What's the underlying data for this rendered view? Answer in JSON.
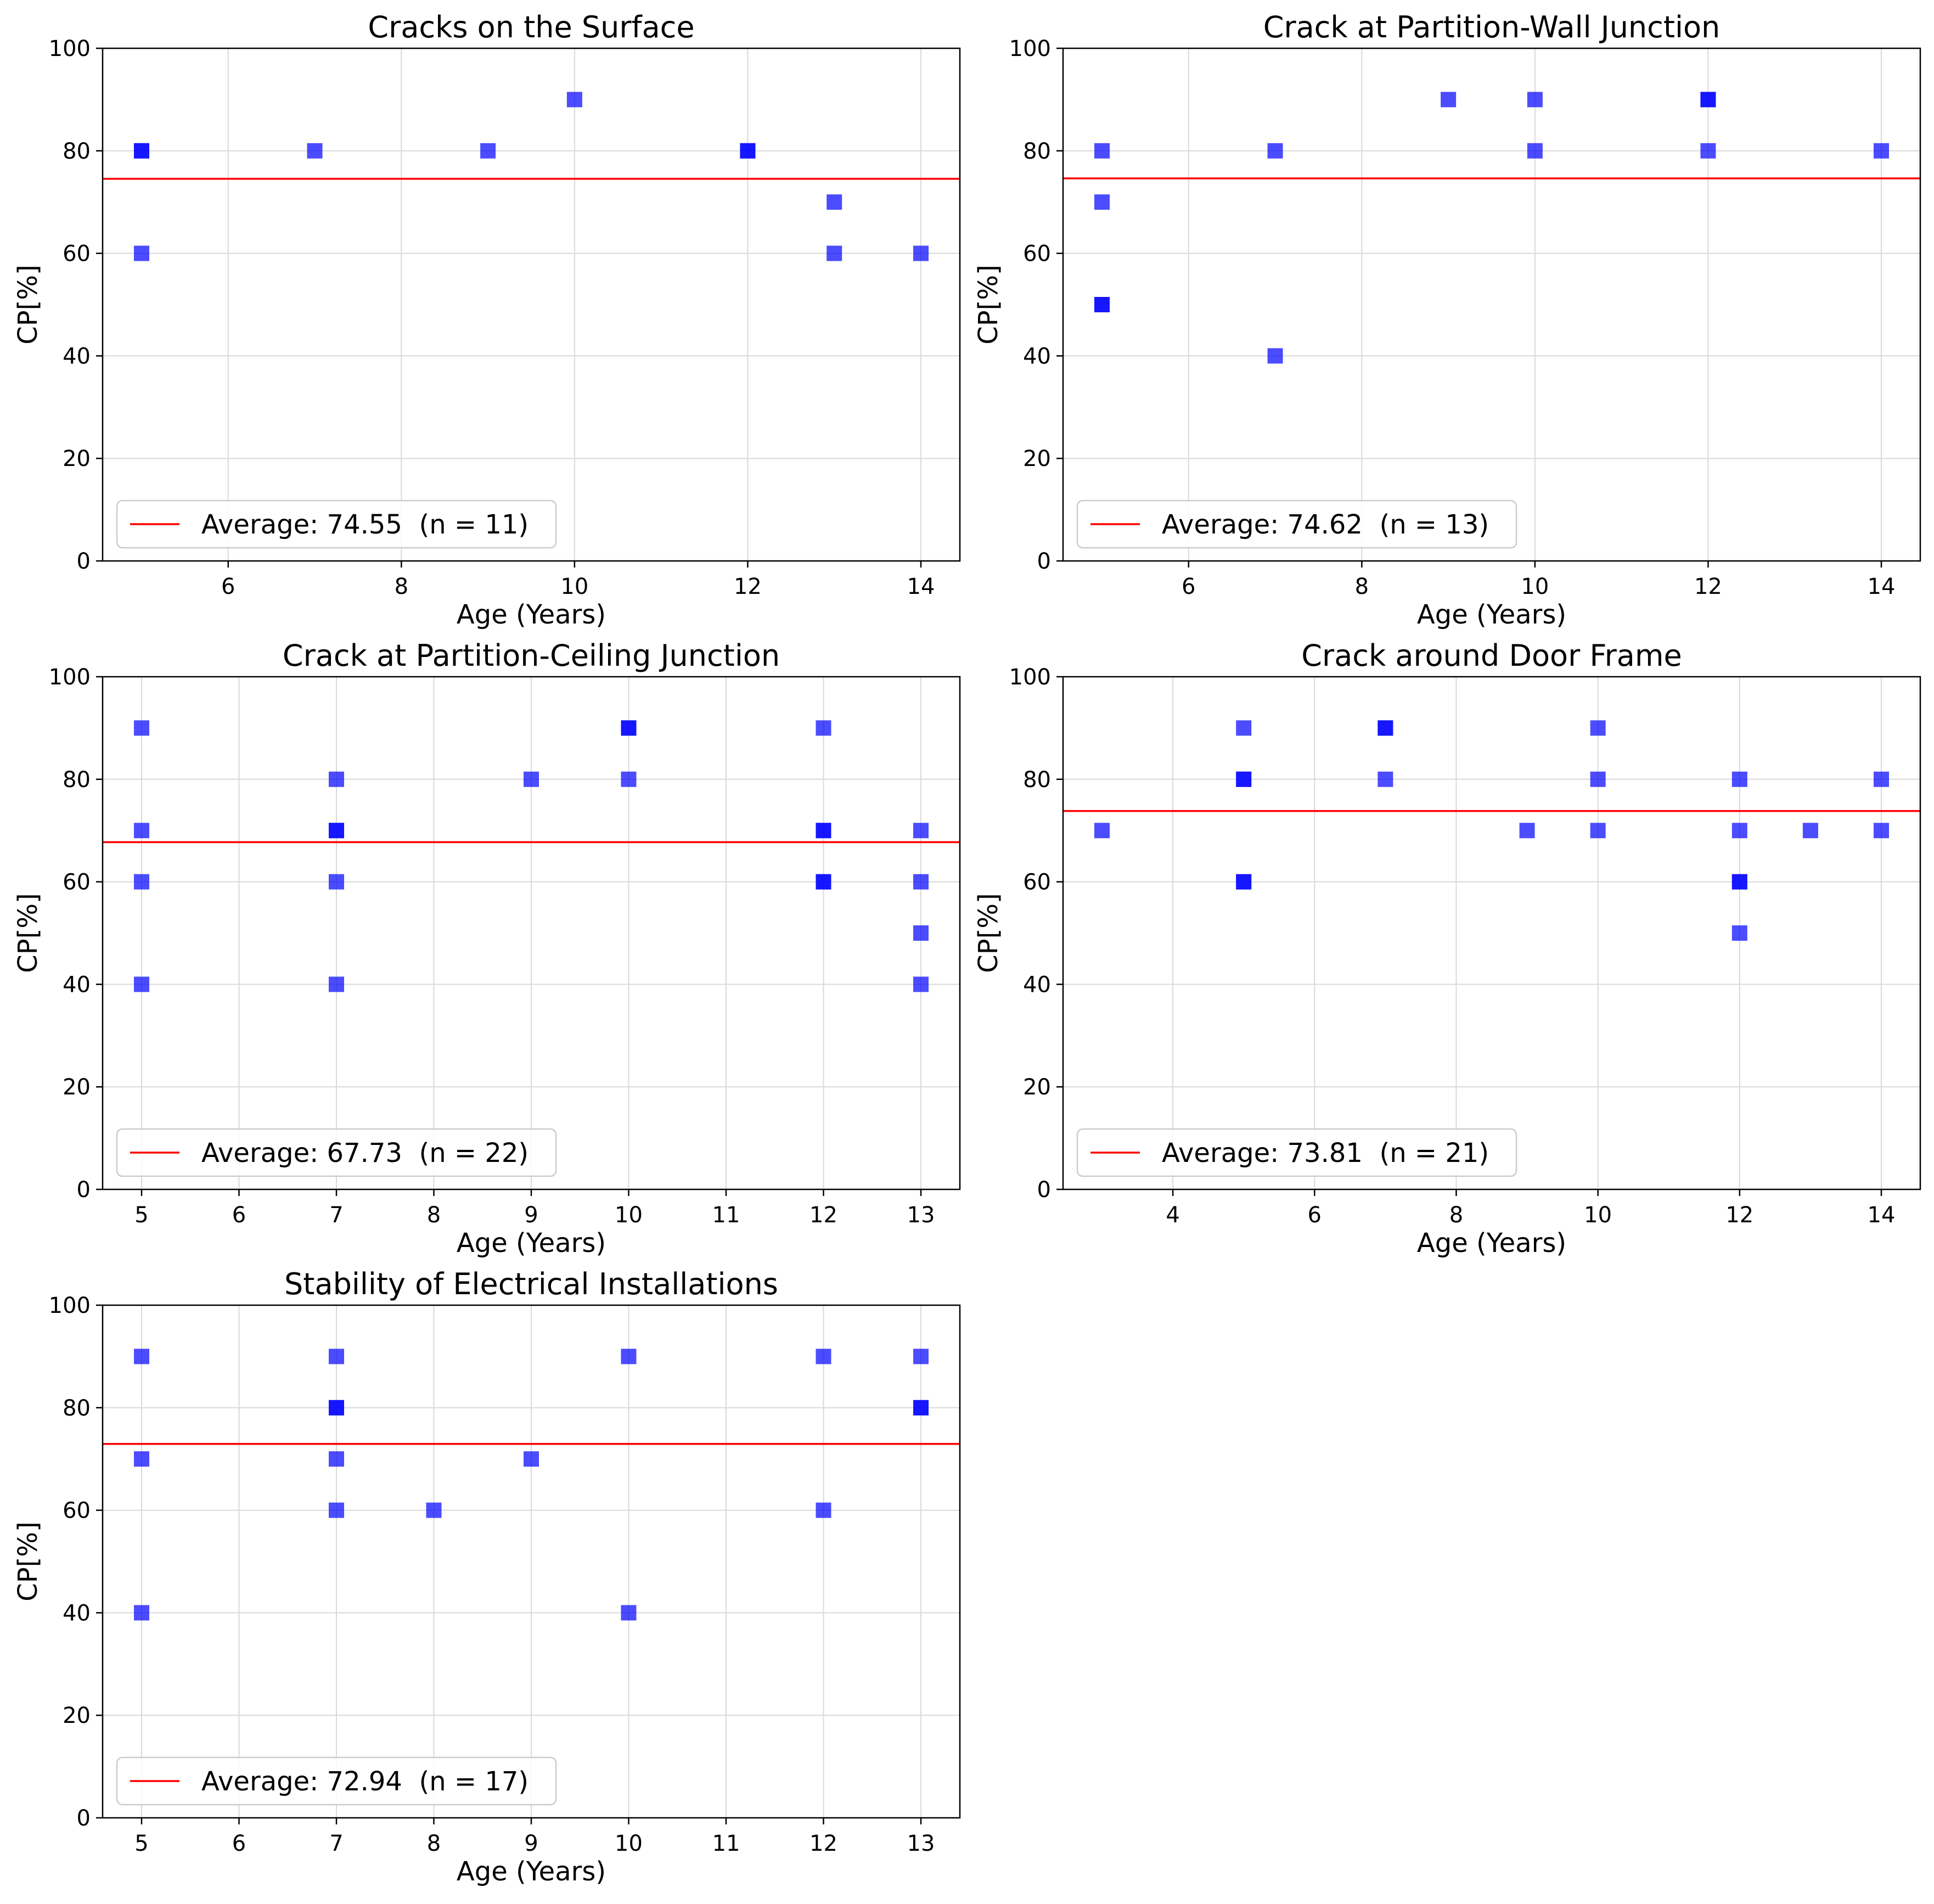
{
  "colors": {
    "marker": "#0000ff",
    "average_line": "#ff0000",
    "grid": "#d9d9d9",
    "frame": "#000000",
    "legend_border": "#cccccc"
  },
  "chart_data": [
    {
      "type": "scatter",
      "title": "Cracks on the Surface",
      "xlabel": "Age (Years)",
      "ylabel": "CP[%]",
      "xlim": [
        4.55,
        14.45
      ],
      "ylim": [
        0,
        100
      ],
      "xticks": [
        6,
        8,
        10,
        12,
        14
      ],
      "yticks": [
        0,
        20,
        40,
        60,
        80,
        100
      ],
      "average": 74.55,
      "n": 11,
      "legend_label": "Average: 74.55  (n = 11)",
      "legend_position": "lower-left",
      "points": [
        [
          5,
          80
        ],
        [
          5,
          80
        ],
        [
          5,
          60
        ],
        [
          7,
          80
        ],
        [
          9,
          80
        ],
        [
          10,
          90
        ],
        [
          12,
          80
        ],
        [
          12,
          80
        ],
        [
          13,
          70
        ],
        [
          13,
          60
        ],
        [
          14,
          60
        ]
      ]
    },
    {
      "type": "scatter",
      "title": "Crack at Partition-Wall Junction",
      "xlabel": "Age (Years)",
      "ylabel": "CP[%]",
      "xlim": [
        4.55,
        14.45
      ],
      "ylim": [
        0,
        100
      ],
      "xticks": [
        6,
        8,
        10,
        12,
        14
      ],
      "yticks": [
        0,
        20,
        40,
        60,
        80,
        100
      ],
      "average": 74.62,
      "n": 13,
      "legend_label": "Average: 74.62  (n = 13)",
      "legend_position": "lower-left",
      "points": [
        [
          5,
          80
        ],
        [
          5,
          70
        ],
        [
          5,
          50
        ],
        [
          5,
          50
        ],
        [
          7,
          80
        ],
        [
          7,
          40
        ],
        [
          9,
          90
        ],
        [
          10,
          90
        ],
        [
          10,
          80
        ],
        [
          12,
          90
        ],
        [
          12,
          90
        ],
        [
          12,
          80
        ],
        [
          14,
          80
        ]
      ]
    },
    {
      "type": "scatter",
      "title": "Crack at Partition-Ceiling Junction",
      "xlabel": "Age (Years)",
      "ylabel": "CP[%]",
      "xlim": [
        4.6,
        13.4
      ],
      "ylim": [
        0,
        100
      ],
      "xticks": [
        5,
        6,
        7,
        8,
        9,
        10,
        11,
        12,
        13
      ],
      "yticks": [
        0,
        20,
        40,
        60,
        80,
        100
      ],
      "average": 67.73,
      "n": 22,
      "legend_label": "Average: 67.73  (n = 22)",
      "legend_position": "lower-left",
      "points": [
        [
          5,
          90
        ],
        [
          5,
          70
        ],
        [
          5,
          60
        ],
        [
          5,
          40
        ],
        [
          7,
          80
        ],
        [
          7,
          70
        ],
        [
          7,
          70
        ],
        [
          7,
          60
        ],
        [
          7,
          40
        ],
        [
          9,
          80
        ],
        [
          10,
          90
        ],
        [
          10,
          90
        ],
        [
          10,
          80
        ],
        [
          12,
          90
        ],
        [
          12,
          70
        ],
        [
          12,
          70
        ],
        [
          12,
          60
        ],
        [
          12,
          60
        ],
        [
          13,
          70
        ],
        [
          13,
          60
        ],
        [
          13,
          50
        ],
        [
          13,
          40
        ]
      ]
    },
    {
      "type": "scatter",
      "title": "Crack around Door Frame",
      "xlabel": "Age (Years)",
      "ylabel": "CP[%]",
      "xlim": [
        2.45,
        14.55
      ],
      "ylim": [
        0,
        100
      ],
      "xticks": [
        4,
        6,
        8,
        10,
        12,
        14
      ],
      "yticks": [
        0,
        20,
        40,
        60,
        80,
        100
      ],
      "average": 73.81,
      "n": 21,
      "legend_label": "Average: 73.81  (n = 21)",
      "legend_position": "lower-left",
      "points": [
        [
          3,
          70
        ],
        [
          5,
          90
        ],
        [
          5,
          80
        ],
        [
          5,
          80
        ],
        [
          5,
          60
        ],
        [
          5,
          60
        ],
        [
          7,
          90
        ],
        [
          7,
          90
        ],
        [
          7,
          80
        ],
        [
          9,
          70
        ],
        [
          10,
          90
        ],
        [
          10,
          80
        ],
        [
          10,
          70
        ],
        [
          12,
          80
        ],
        [
          12,
          70
        ],
        [
          12,
          60
        ],
        [
          12,
          60
        ],
        [
          12,
          50
        ],
        [
          13,
          70
        ],
        [
          14,
          80
        ],
        [
          14,
          70
        ]
      ]
    },
    {
      "type": "scatter",
      "title": "Stability of Electrical Installations",
      "xlabel": "Age (Years)",
      "ylabel": "CP[%]",
      "xlim": [
        4.6,
        13.4
      ],
      "ylim": [
        0,
        100
      ],
      "xticks": [
        5,
        6,
        7,
        8,
        9,
        10,
        11,
        12,
        13
      ],
      "yticks": [
        0,
        20,
        40,
        60,
        80,
        100
      ],
      "average": 72.94,
      "n": 17,
      "legend_label": "Average: 72.94  (n = 17)",
      "legend_position": "lower-left",
      "points": [
        [
          5,
          90
        ],
        [
          5,
          70
        ],
        [
          5,
          40
        ],
        [
          7,
          90
        ],
        [
          7,
          80
        ],
        [
          7,
          80
        ],
        [
          7,
          70
        ],
        [
          7,
          60
        ],
        [
          8,
          60
        ],
        [
          9,
          70
        ],
        [
          10,
          90
        ],
        [
          10,
          40
        ],
        [
          12,
          90
        ],
        [
          12,
          60
        ],
        [
          13,
          90
        ],
        [
          13,
          80
        ],
        [
          13,
          80
        ]
      ]
    }
  ]
}
